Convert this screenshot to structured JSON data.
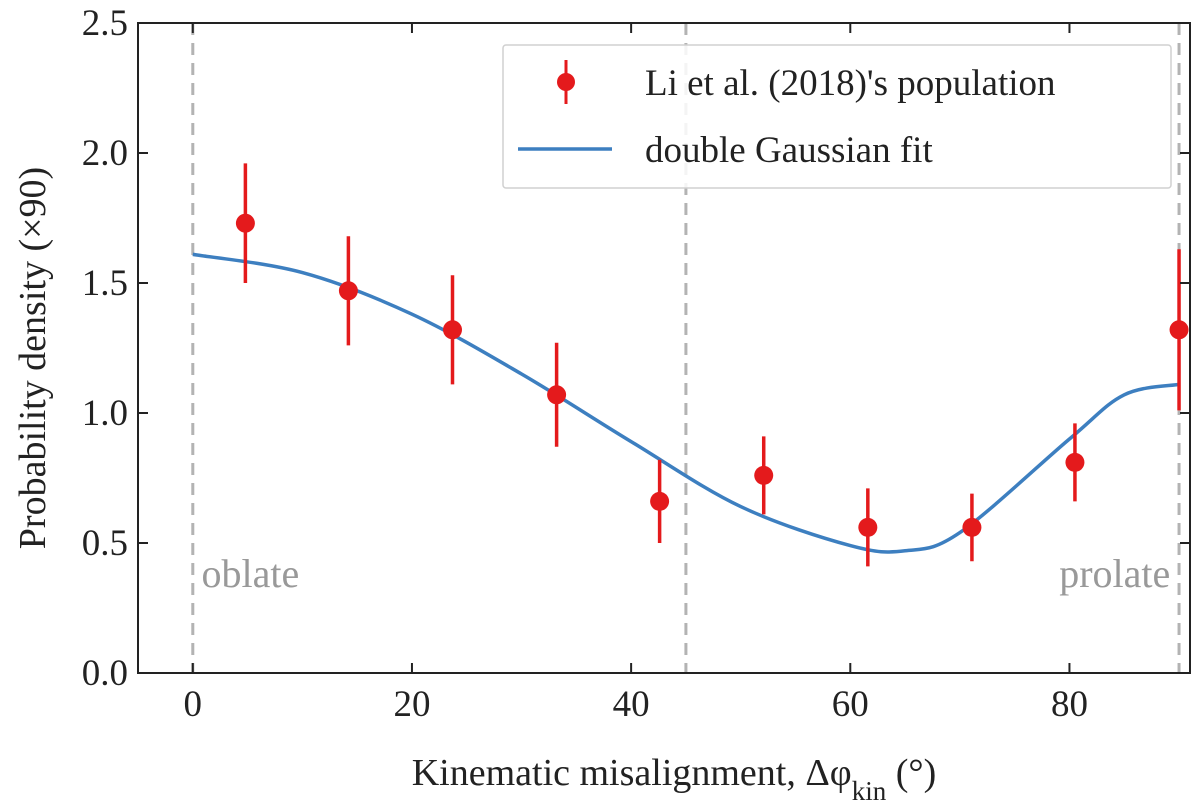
{
  "chart_data": {
    "type": "scatter",
    "xlabel": "Kinematic misalignment, Δφ",
    "xlabel_subscript": "kin",
    "xlabel_unit": " (°)",
    "ylabel": "Probability density (×90)",
    "xlim": [
      -5,
      91
    ],
    "ylim": [
      0,
      2.5
    ],
    "xticks": [
      0,
      20,
      40,
      60,
      80
    ],
    "yticks": [
      0.0,
      0.5,
      1.0,
      1.5,
      2.0,
      2.5
    ],
    "xtick_labels": [
      "0",
      "20",
      "40",
      "60",
      "80"
    ],
    "ytick_labels": [
      "0.0",
      "0.5",
      "1.0",
      "1.5",
      "2.0",
      "2.5"
    ],
    "vlines": [
      0,
      45,
      90
    ],
    "annotations": [
      {
        "text": "oblate",
        "x": 0.8,
        "y": 0.33
      },
      {
        "text": "prolate",
        "x": 89.2,
        "y": 0.33
      }
    ],
    "legend": {
      "position": "top-right",
      "entries": [
        "Li et al. (2018)'s population",
        "double Gaussian fit"
      ]
    },
    "series": [
      {
        "name": "Li et al. (2018)'s population",
        "kind": "errorbar",
        "color": "#e41a1c",
        "x": [
          4.8,
          14.2,
          23.7,
          33.2,
          42.6,
          52.1,
          61.6,
          71.1,
          80.5,
          90.0
        ],
        "y": [
          1.73,
          1.47,
          1.32,
          1.07,
          0.66,
          0.76,
          0.56,
          0.56,
          0.81,
          1.32
        ],
        "yerr": [
          0.23,
          0.21,
          0.21,
          0.2,
          0.16,
          0.15,
          0.15,
          0.13,
          0.15,
          0.31
        ]
      },
      {
        "name": "double Gaussian fit",
        "kind": "line",
        "color": "#3d7fc0",
        "x": [
          0,
          10,
          20,
          30,
          40,
          50,
          60,
          65,
          70,
          80,
          85,
          90
        ],
        "y": [
          1.61,
          1.54,
          1.38,
          1.15,
          0.89,
          0.64,
          0.49,
          0.47,
          0.54,
          0.9,
          1.07,
          1.11
        ]
      }
    ]
  }
}
